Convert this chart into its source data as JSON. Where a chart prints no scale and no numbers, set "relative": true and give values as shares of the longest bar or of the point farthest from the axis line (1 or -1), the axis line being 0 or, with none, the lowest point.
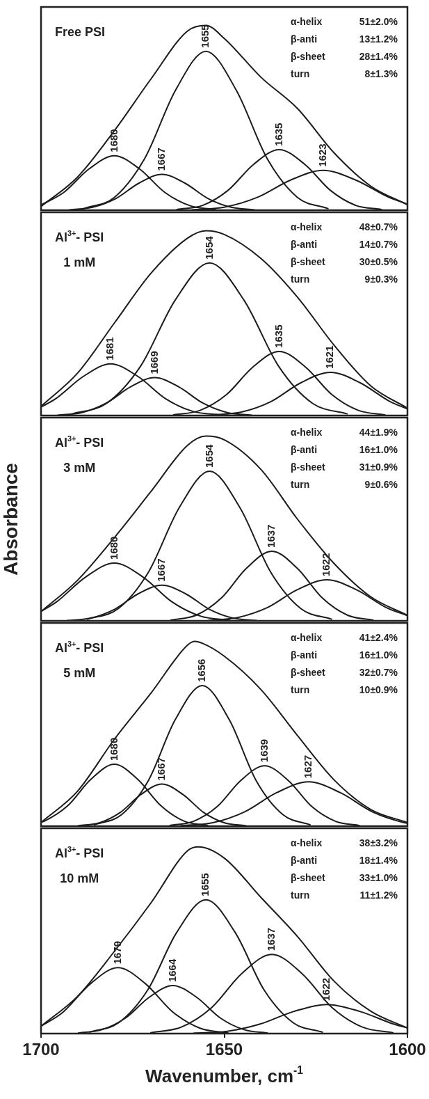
{
  "chart_data": [
    {
      "type": "line",
      "relative": true,
      "title": "Free PSI",
      "xlim": [
        1700,
        1600
      ],
      "xticks": [
        1700,
        1650,
        1600
      ],
      "tick_labels": false,
      "annotations": [
        "α-helix 51±2.0%",
        "β-anti 13±1.2%",
        "β-sheet 28±1.4%",
        "turn 8±1.3%",
        {
          "text": "1680",
          "x": 1680,
          "y": 0.295
        },
        {
          "text": "1667",
          "x": 1667,
          "y": 0.194
        },
        {
          "text": "1655",
          "x": 1655,
          "y": 0.86
        },
        {
          "text": "1635",
          "x": 1635,
          "y": 0.328
        },
        {
          "text": "1623",
          "x": 1623,
          "y": 0.216
        }
      ],
      "series": [
        {
          "color": "#1c1c1c",
          "x": [
            1600,
            1610,
            1620,
            1630,
            1640,
            1650,
            1655,
            1660,
            1670,
            1680,
            1690,
            1700
          ],
          "values": [
            0.03,
            0.13,
            0.31,
            0.55,
            0.72,
            0.93,
            1,
            0.97,
            0.71,
            0.43,
            0.18,
            0.02
          ]
        },
        {
          "color": "#1c1c1c",
          "x": [
            1652.4,
            1659.3,
            1666.2,
            1673.1,
            1680,
            1686.9,
            1693.8,
            1700
          ],
          "values": [
            0.003,
            0.024,
            0.096,
            0.223,
            0.295,
            0.223,
            0.096,
            0.028
          ]
        },
        {
          "color": "#1c1c1c",
          "x": [
            1641.8,
            1648.1,
            1654.4,
            1660.7,
            1667,
            1673.3,
            1679.6,
            1685.9,
            1692.2
          ],
          "values": [
            0.002,
            0.016,
            0.063,
            0.146,
            0.194,
            0.146,
            0.063,
            0.016,
            0.002
          ]
        },
        {
          "color": "#1c1c1c",
          "x": [
            1621.7,
            1630,
            1638.3,
            1646.7,
            1655,
            1663.3,
            1671.7,
            1680,
            1688.3
          ],
          "values": [
            0.009,
            0.069,
            0.28,
            0.649,
            0.86,
            0.649,
            0.28,
            0.069,
            0.009
          ]
        },
        {
          "color": "#1c1c1c",
          "x": [
            1607.1,
            1614.1,
            1621,
            1628,
            1635,
            1642,
            1649,
            1655.9,
            1662.9
          ],
          "values": [
            0.004,
            0.026,
            0.107,
            0.248,
            0.328,
            0.248,
            0.107,
            0.026,
            0.004
          ]
        },
        {
          "color": "#1c1c1c",
          "x": [
            1600,
            1605.1,
            1614.1,
            1623,
            1631.9,
            1640.9,
            1649.8,
            1658.7
          ],
          "values": [
            0.033,
            0.07,
            0.163,
            0.216,
            0.163,
            0.07,
            0.017,
            0.002
          ]
        }
      ]
    },
    {
      "type": "line",
      "relative": true,
      "title": "Al$^{3+}$- PSI",
      "subtitle": "1 mM",
      "xlim": [
        1700,
        1600
      ],
      "xticks": [
        1700,
        1650,
        1600
      ],
      "tick_labels": false,
      "annotations": [
        "α-helix 48±0.7%",
        "β-anti 14±0.7%",
        "β-sheet 30±0.5%",
        "turn 9±0.3%",
        {
          "text": "1681",
          "x": 1681,
          "y": 0.28
        },
        {
          "text": "1669",
          "x": 1669,
          "y": 0.205
        },
        {
          "text": "1654",
          "x": 1654,
          "y": 0.826
        },
        {
          "text": "1635",
          "x": 1635,
          "y": 0.347
        },
        {
          "text": "1621",
          "x": 1621,
          "y": 0.234
        }
      ],
      "series": [
        {
          "color": "#1c1c1c",
          "x": [
            1600,
            1610,
            1620,
            1630,
            1640,
            1650,
            1655,
            1660,
            1670,
            1680,
            1690,
            1700
          ],
          "values": [
            0.04,
            0.16,
            0.38,
            0.64,
            0.85,
            0.98,
            1,
            0.96,
            0.77,
            0.5,
            0.23,
            0.05
          ]
        },
        {
          "color": "#1c1c1c",
          "x": [
            1651,
            1658.5,
            1666,
            1673.5,
            1681,
            1688.5,
            1696,
            1700
          ],
          "values": [
            0.003,
            0.022,
            0.091,
            0.211,
            0.28,
            0.211,
            0.091,
            0.046
          ]
        },
        {
          "color": "#1c1c1c",
          "x": [
            1642.6,
            1649.2,
            1655.8,
            1662.4,
            1669,
            1675.6,
            1682.2,
            1688.8,
            1695.4
          ],
          "values": [
            0.002,
            0.016,
            0.067,
            0.155,
            0.205,
            0.155,
            0.067,
            0.016,
            0.002
          ]
        },
        {
          "color": "#1c1c1c",
          "x": [
            1616.5,
            1625.9,
            1635.2,
            1644.6,
            1654,
            1663.4,
            1672.8,
            1682.1,
            1691.5
          ],
          "values": [
            0.009,
            0.066,
            0.268,
            0.624,
            0.826,
            0.624,
            0.268,
            0.066,
            0.009
          ]
        },
        {
          "color": "#1c1c1c",
          "x": [
            1606.2,
            1613.4,
            1620.6,
            1627.8,
            1635,
            1642.2,
            1649.4,
            1656.6,
            1663.8
          ],
          "values": [
            0.004,
            0.028,
            0.113,
            0.262,
            0.347,
            0.262,
            0.113,
            0.028,
            0.004
          ]
        },
        {
          "color": "#1c1c1c",
          "x": [
            1600,
            1604.8,
            1612.9,
            1621,
            1629.1,
            1637.2,
            1645.3,
            1653.4
          ],
          "values": [
            0.036,
            0.076,
            0.177,
            0.234,
            0.177,
            0.076,
            0.019,
            0.003
          ]
        }
      ]
    },
    {
      "type": "line",
      "relative": true,
      "title": "Al$^{3+}$- PSI",
      "subtitle": "3 mM",
      "ylabel": "Absorbance",
      "xlim": [
        1700,
        1600
      ],
      "xticks": [
        1700,
        1650,
        1600
      ],
      "tick_labels": false,
      "annotations": [
        "α-helix 44±1.9%",
        "β-anti 16±1.0%",
        "β-sheet 31±0.9%",
        "turn 9±0.6%",
        {
          "text": "1680",
          "x": 1680,
          "y": 0.313
        },
        {
          "text": "1667",
          "x": 1667,
          "y": 0.193
        },
        {
          "text": "1654",
          "x": 1654,
          "y": 0.81
        },
        {
          "text": "1637",
          "x": 1637,
          "y": 0.377
        },
        {
          "text": "1622",
          "x": 1622,
          "y": 0.222
        }
      ],
      "series": [
        {
          "color": "#1c1c1c",
          "x": [
            1600,
            1610,
            1620,
            1630,
            1640,
            1650,
            1655,
            1660,
            1670,
            1680,
            1690,
            1700
          ],
          "values": [
            0.03,
            0.13,
            0.31,
            0.55,
            0.82,
            0.98,
            1,
            0.95,
            0.7,
            0.45,
            0.22,
            0.05
          ]
        },
        {
          "color": "#1c1c1c",
          "x": [
            1648.5,
            1656.4,
            1664.2,
            1672.1,
            1680,
            1687.9,
            1695.8,
            1700
          ],
          "values": [
            0.003,
            0.025,
            0.102,
            0.236,
            0.313,
            0.236,
            0.102,
            0.051
          ]
        },
        {
          "color": "#1c1c1c",
          "x": [
            1641.2,
            1647.6,
            1654.1,
            1660.5,
            1667,
            1673.5,
            1679.9,
            1686.4,
            1692.8
          ],
          "values": [
            0.002,
            0.015,
            0.063,
            0.146,
            0.193,
            0.146,
            0.063,
            0.015,
            0.002
          ]
        },
        {
          "color": "#1c1c1c",
          "x": [
            1620.7,
            1629,
            1637.3,
            1645.7,
            1654,
            1662.3,
            1670.7,
            1679,
            1687.3
          ],
          "values": [
            0.009,
            0.065,
            0.263,
            0.612,
            0.81,
            0.612,
            0.263,
            0.065,
            0.009
          ]
        },
        {
          "color": "#1c1c1c",
          "x": [
            1609.4,
            1616.3,
            1623.2,
            1630.1,
            1637,
            1643.9,
            1650.8,
            1657.7,
            1664.6
          ],
          "values": [
            0.004,
            0.03,
            0.123,
            0.285,
            0.377,
            0.285,
            0.123,
            0.03,
            0.004
          ]
        },
        {
          "color": "#1c1c1c",
          "x": [
            1600,
            1605.8,
            1613.9,
            1622,
            1630.1,
            1638.2,
            1646.3,
            1654.4
          ],
          "values": [
            0.028,
            0.072,
            0.168,
            0.222,
            0.168,
            0.072,
            0.018,
            0.002
          ]
        }
      ]
    },
    {
      "type": "line",
      "relative": true,
      "title": "Al$^{3+}$- PSI",
      "subtitle": "5 mM",
      "xlim": [
        1700,
        1600
      ],
      "xticks": [
        1700,
        1650,
        1600
      ],
      "tick_labels": false,
      "annotations": [
        "α-helix 41±2.4%",
        "β-anti 16±1.0%",
        "β-sheet 32±0.7%",
        "turn 10±0.9%",
        {
          "text": "1680",
          "x": 1680,
          "y": 0.335
        },
        {
          "text": "1667",
          "x": 1667,
          "y": 0.228
        },
        {
          "text": "1656",
          "x": 1656,
          "y": 0.761
        },
        {
          "text": "1639",
          "x": 1639,
          "y": 0.327
        },
        {
          "text": "1627",
          "x": 1627,
          "y": 0.24
        }
      ],
      "series": [
        {
          "color": "#1c1c1c",
          "x": [
            1600,
            1610,
            1620,
            1630,
            1640,
            1650,
            1656,
            1658,
            1660,
            1670,
            1680,
            1690,
            1700
          ],
          "values": [
            0.02,
            0.09,
            0.25,
            0.49,
            0.74,
            0.92,
            0.99,
            1,
            0.98,
            0.72,
            0.47,
            0.19,
            0.02
          ]
        },
        {
          "color": "#1c1c1c",
          "x": [
            1654.5,
            1660.9,
            1667.2,
            1673.6,
            1680,
            1686.4,
            1692.8,
            1699.1,
            1700
          ],
          "values": [
            0.004,
            0.027,
            0.109,
            0.253,
            0.335,
            0.253,
            0.109,
            0.027,
            0.021
          ]
        },
        {
          "color": "#1c1c1c",
          "x": [
            1644.2,
            1649.9,
            1655.6,
            1661.3,
            1667,
            1672.7,
            1678.4,
            1684.1,
            1689.8
          ],
          "values": [
            0.003,
            0.018,
            0.074,
            0.172,
            0.228,
            0.172,
            0.074,
            0.018,
            0.003
          ]
        },
        {
          "color": "#1c1c1c",
          "x": [
            1626.6,
            1633.9,
            1641.3,
            1648.6,
            1656,
            1663.4,
            1670.7,
            1678.1,
            1685.4
          ],
          "values": [
            0.008,
            0.061,
            0.247,
            0.575,
            0.761,
            0.575,
            0.247,
            0.061,
            0.008
          ]
        },
        {
          "color": "#1c1c1c",
          "x": [
            1613.2,
            1619.6,
            1626.1,
            1632.5,
            1639,
            1645.5,
            1651.9,
            1658.4,
            1664.8
          ],
          "values": [
            0.004,
            0.026,
            0.106,
            0.247,
            0.327,
            0.247,
            0.106,
            0.026,
            0.004
          ]
        },
        {
          "color": "#1c1c1c",
          "x": [
            1600,
            1600.9,
            1609.6,
            1618.3,
            1627,
            1635.7,
            1644.4,
            1653.1,
            1661.8
          ],
          "values": [
            0.016,
            0.019,
            0.078,
            0.181,
            0.24,
            0.181,
            0.078,
            0.019,
            0.003
          ]
        }
      ]
    },
    {
      "type": "line",
      "relative": true,
      "title": "Al$^{3+}$- PSI",
      "subtitle": "10 mM",
      "xlabel": "Wavenumber, cm$^{-1}$",
      "xlim": [
        1700,
        1600
      ],
      "xticks": [
        1700,
        1650,
        1600
      ],
      "tick_labels": "x",
      "annotations": [
        "α-helix 38±3.2%",
        "β-anti 18±1.4%",
        "β-sheet 33±1.0%",
        "turn 11±1.2%",
        {
          "text": "1679",
          "x": 1679,
          "y": 0.353
        },
        {
          "text": "1664",
          "x": 1664,
          "y": 0.257
        },
        {
          "text": "1655",
          "x": 1655,
          "y": 0.717
        },
        {
          "text": "1637",
          "x": 1637,
          "y": 0.424
        },
        {
          "text": "1622",
          "x": 1622,
          "y": 0.156
        }
      ],
      "series": [
        {
          "color": "#1c1c1c",
          "x": [
            1600,
            1610,
            1620,
            1630,
            1640,
            1650,
            1657,
            1660,
            1670,
            1680,
            1690,
            1700
          ],
          "values": [
            0.03,
            0.12,
            0.28,
            0.52,
            0.73,
            0.94,
            1,
            0.98,
            0.7,
            0.44,
            0.2,
            0.04
          ]
        },
        {
          "color": "#1c1c1c",
          "x": [
            1649,
            1656.5,
            1664,
            1671.5,
            1679,
            1686.5,
            1694,
            1700
          ],
          "values": [
            0.004,
            0.028,
            0.115,
            0.267,
            0.353,
            0.267,
            0.115,
            0.039
          ]
        },
        {
          "color": "#1c1c1c",
          "x": [
            1638.2,
            1644.6,
            1651.1,
            1657.5,
            1664,
            1670.5,
            1676.9,
            1683.4,
            1689.8
          ],
          "values": [
            0.003,
            0.021,
            0.084,
            0.194,
            0.257,
            0.194,
            0.084,
            0.021,
            0.003
          ]
        },
        {
          "color": "#1c1c1c",
          "x": [
            1623.2,
            1631.1,
            1639.1,
            1647,
            1655,
            1663,
            1670.9,
            1678.9,
            1686.8
          ],
          "values": [
            0.008,
            0.057,
            0.233,
            0.541,
            0.717,
            0.541,
            0.233,
            0.057,
            0.008
          ]
        },
        {
          "color": "#1c1c1c",
          "x": [
            1604,
            1612.2,
            1620.5,
            1628.7,
            1637,
            1645.3,
            1653.5,
            1661.8,
            1670
          ],
          "values": [
            0.005,
            0.034,
            0.138,
            0.32,
            0.424,
            0.32,
            0.138,
            0.034,
            0.005
          ]
        },
        {
          "color": "#1c1c1c",
          "x": [
            1600,
            1603.8,
            1612.9,
            1622,
            1631.1,
            1640.2,
            1649.2,
            1658.3
          ],
          "values": [
            0.03,
            0.051,
            0.118,
            0.156,
            0.118,
            0.051,
            0.012,
            0.002
          ]
        }
      ]
    }
  ]
}
